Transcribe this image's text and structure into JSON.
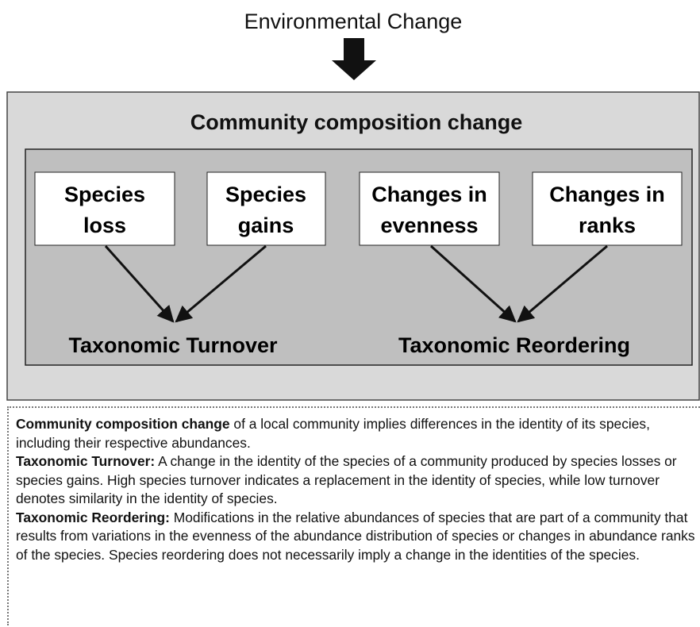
{
  "title": "Environmental Change",
  "panel": {
    "title": "Community composition change",
    "nodes": [
      {
        "lines": [
          "Species",
          "loss"
        ]
      },
      {
        "lines": [
          "Species",
          "gains"
        ]
      },
      {
        "lines": [
          "Changes in",
          "evenness"
        ]
      },
      {
        "lines": [
          "Changes in",
          "ranks"
        ]
      }
    ],
    "groups": [
      {
        "label": "Taxonomic Turnover"
      },
      {
        "label": "Taxonomic Reordering"
      }
    ]
  },
  "definitions": [
    {
      "term": "Community composition change",
      "text": " of a local community implies differences in the identity of its species, including their respective abundances."
    },
    {
      "term": "Taxonomic Turnover:",
      "text": " A change in the identity of the species of a community produced by species losses or species gains. High species turnover indicates a replacement in the identity of species, while low turnover denotes similarity in the identity of species."
    },
    {
      "term": "Taxonomic Reordering:",
      "text": " Modifications in the relative abundances of species that are part of a community that results from variations in the evenness of the abundance distribution of species or changes in abundance ranks of the species. Species reordering does not necessarily imply a change in the identities of the species."
    }
  ]
}
